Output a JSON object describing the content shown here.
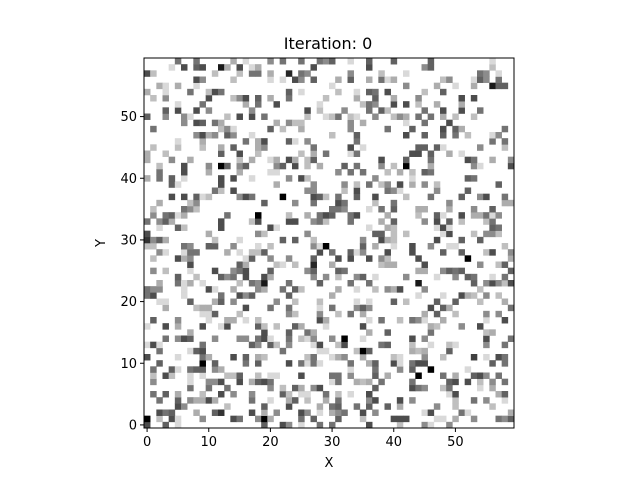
{
  "chart_data": {
    "type": "heatmap",
    "title": "Iteration: 0",
    "xlabel": "X",
    "ylabel": "Y",
    "grid_size": [
      60,
      60
    ],
    "xlim": [
      -0.5,
      59.5
    ],
    "ylim": [
      -0.5,
      59.5
    ],
    "x_ticks": [
      0,
      10,
      20,
      30,
      40,
      50
    ],
    "y_ticks": [
      0,
      10,
      20,
      30,
      40,
      50
    ],
    "colormap": "Greys",
    "value_range": [
      0,
      1
    ],
    "fill_fraction": 0.28,
    "random_seed": 7,
    "notable_cells": [
      {
        "x": 0,
        "y": 1,
        "value": 1.0
      },
      {
        "x": 12,
        "y": 42,
        "value": 1.0
      },
      {
        "x": 42,
        "y": 42,
        "value": 1.0
      },
      {
        "x": 18,
        "y": 34,
        "value": 1.0
      },
      {
        "x": 22,
        "y": 37,
        "value": 1.0
      },
      {
        "x": 29,
        "y": 29,
        "value": 1.0
      },
      {
        "x": 27,
        "y": 26,
        "value": 0.85
      },
      {
        "x": 52,
        "y": 27,
        "value": 1.0
      },
      {
        "x": 19,
        "y": 23,
        "value": 0.9
      },
      {
        "x": 9,
        "y": 10,
        "value": 1.0
      },
      {
        "x": 32,
        "y": 14,
        "value": 1.0
      },
      {
        "x": 35,
        "y": 12,
        "value": 1.0
      },
      {
        "x": 44,
        "y": 8,
        "value": 1.0
      },
      {
        "x": 46,
        "y": 9,
        "value": 1.0
      },
      {
        "x": 19,
        "y": 1,
        "value": 1.0
      },
      {
        "x": 12,
        "y": 2,
        "value": 0.8
      },
      {
        "x": 4,
        "y": 1,
        "value": 0.7
      },
      {
        "x": 44,
        "y": 23,
        "value": 0.9
      },
      {
        "x": 0,
        "y": 30,
        "value": 0.8
      },
      {
        "x": 53,
        "y": 11,
        "value": 0.75
      },
      {
        "x": 56,
        "y": 55,
        "value": 0.9
      },
      {
        "x": 23,
        "y": 57,
        "value": 0.85
      },
      {
        "x": 12,
        "y": 58,
        "value": 0.9
      }
    ]
  }
}
